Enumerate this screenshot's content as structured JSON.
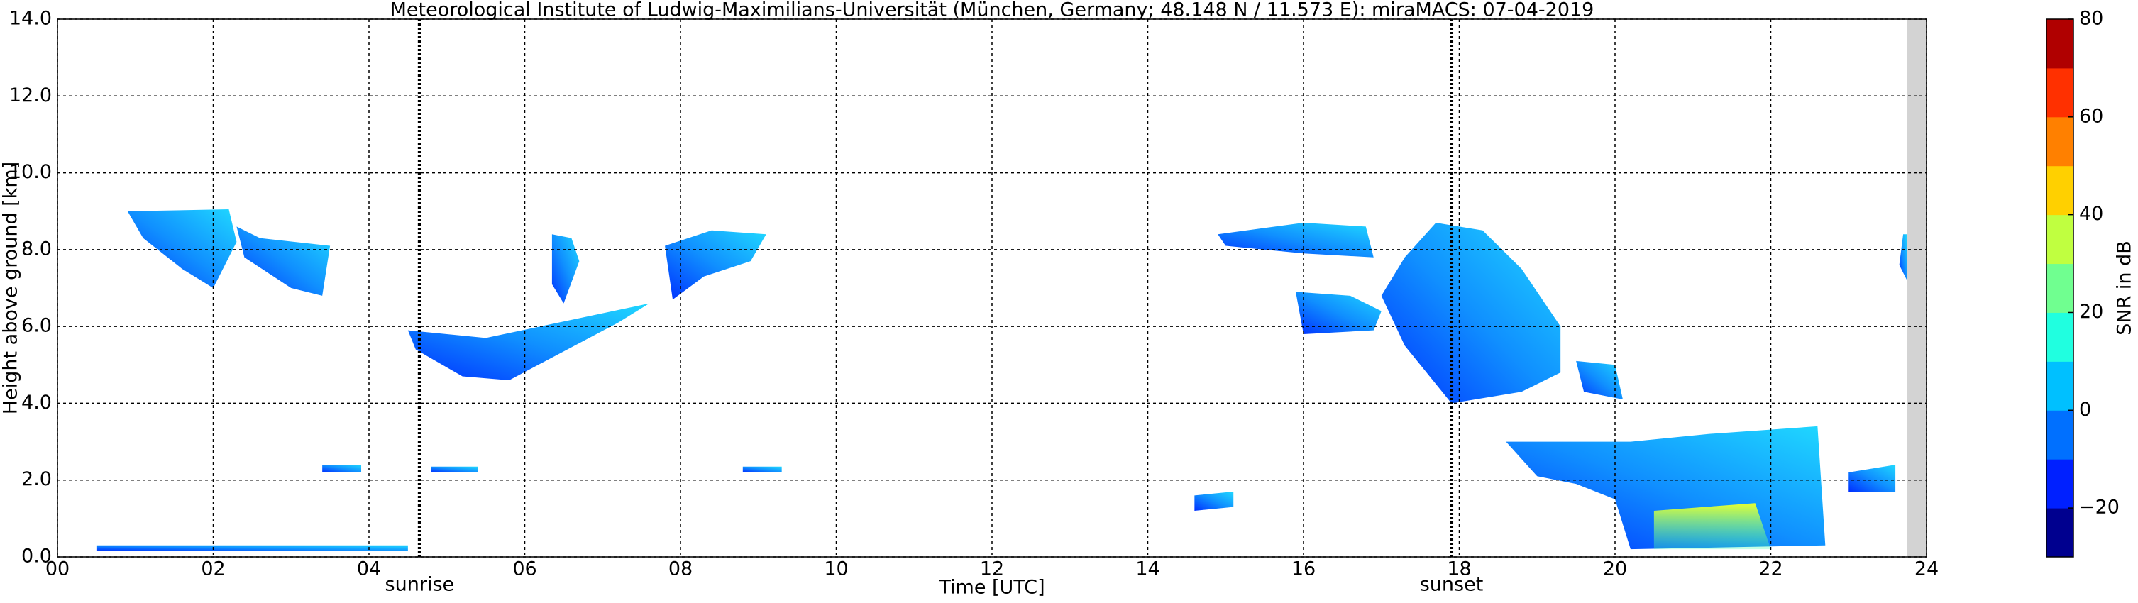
{
  "chart_data": {
    "type": "heatmap",
    "title": "Meteorological Institute of Ludwig-Maximilians-Universität (München, Germany; 48.148 N / 11.573 E):    miraMACS: 07-04-2019",
    "x_label": "Time [UTC]",
    "y_label": "Height above ground [km]",
    "colorbar_label": "SNR in dB",
    "xlim": [
      0,
      24
    ],
    "xticks": [
      {
        "value": 0,
        "label": "00"
      },
      {
        "value": 2,
        "label": "02"
      },
      {
        "value": 4,
        "label": "04"
      },
      {
        "value": 6,
        "label": "06"
      },
      {
        "value": 8,
        "label": "08"
      },
      {
        "value": 10,
        "label": "10"
      },
      {
        "value": 12,
        "label": "12"
      },
      {
        "value": 14,
        "label": "14"
      },
      {
        "value": 16,
        "label": "16"
      },
      {
        "value": 18,
        "label": "18"
      },
      {
        "value": 20,
        "label": "20"
      },
      {
        "value": 22,
        "label": "22"
      },
      {
        "value": 24,
        "label": "24"
      }
    ],
    "ylim": [
      0,
      14
    ],
    "yticks": [
      {
        "value": 0,
        "label": "0.0"
      },
      {
        "value": 2,
        "label": "2.0"
      },
      {
        "value": 4,
        "label": "4.0"
      },
      {
        "value": 6,
        "label": "6.0"
      },
      {
        "value": 8,
        "label": "8.0"
      },
      {
        "value": 10,
        "label": "10.0"
      },
      {
        "value": 12,
        "label": "12.0"
      },
      {
        "value": 14,
        "label": "14.0"
      }
    ],
    "clim": [
      -30,
      80
    ],
    "cticks": [
      {
        "value": -20,
        "label": "−20"
      },
      0,
      20,
      40,
      60,
      80
    ],
    "colormap": [
      "#00008f",
      "#0020ff",
      "#0070ff",
      "#00c0ff",
      "#20ffe0",
      "#70ff90",
      "#c0ff40",
      "#ffd000",
      "#ff8000",
      "#ff3000",
      "#b00000"
    ],
    "grid": true,
    "annotations": [
      {
        "text": "sunrise",
        "x": 4.65
      },
      {
        "text": "sunset",
        "x": 17.9
      }
    ],
    "no_data_xrange": [
      23.75,
      24
    ]
  }
}
